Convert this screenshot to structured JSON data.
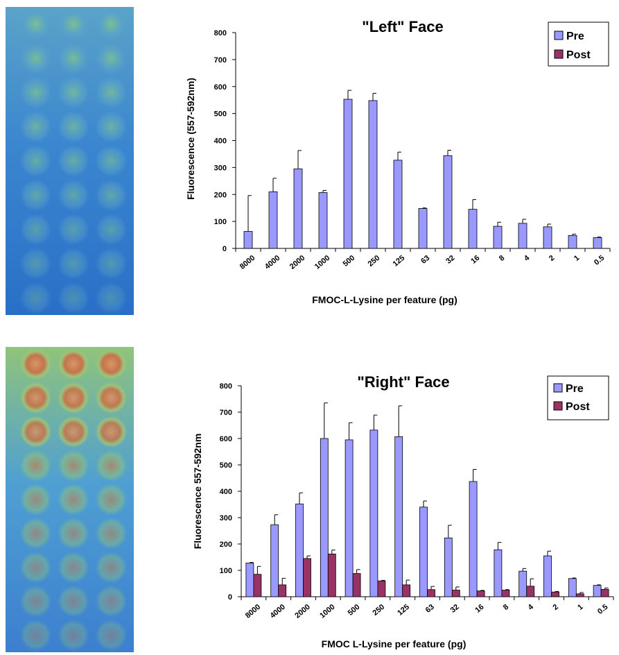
{
  "colors": {
    "pre": "#9999ff",
    "post": "#993366"
  },
  "images": [
    {
      "name": "left-face-fluorescence-image",
      "palette": [
        "#7fc38c",
        "#5aa3c9",
        "#3b86cf",
        "#2a6fc7"
      ]
    },
    {
      "name": "right-face-fluorescence-image",
      "palette": [
        "#c87a4c",
        "#8fc47a",
        "#4f9fd3",
        "#3c7fcf"
      ]
    }
  ],
  "chart_data": [
    {
      "type": "bar",
      "title": "\"Left\" Face",
      "xlabel": "FMOC-L-Lysine per feature (pg)",
      "ylabel": "Fluorescence (557-592nm)",
      "ylim": [
        0,
        800
      ],
      "yticks": [
        0,
        100,
        200,
        300,
        400,
        500,
        600,
        700,
        800
      ],
      "categories": [
        "8000",
        "4000",
        "2000",
        "1000",
        "500",
        "250",
        "125",
        "63",
        "32",
        "16",
        "8",
        "4",
        "2",
        "1",
        "0.5"
      ],
      "legend_position": "top-right",
      "legend": [
        "Pre",
        "Post"
      ],
      "series": [
        {
          "name": "Pre",
          "color": "#9999ff",
          "values": [
            63,
            210,
            295,
            207,
            553,
            548,
            327,
            148,
            344,
            145,
            82,
            93,
            80,
            48,
            40
          ],
          "errors": [
            133,
            50,
            68,
            8,
            33,
            27,
            30,
            2,
            20,
            36,
            15,
            15,
            10,
            5,
            2
          ]
        }
      ]
    },
    {
      "type": "bar",
      "title": "\"Right\" Face",
      "xlabel": "FMOC L-Lysine per feature (pg)",
      "ylabel": "Fluorescence 557-592nm",
      "ylim": [
        0,
        800
      ],
      "yticks": [
        0,
        100,
        200,
        300,
        400,
        500,
        600,
        700,
        800
      ],
      "categories": [
        "8000",
        "4000",
        "2000",
        "1000",
        "500",
        "250",
        "125",
        "63",
        "32",
        "16",
        "8",
        "4",
        "2",
        "1",
        "0.5"
      ],
      "legend_position": "top-right",
      "legend": [
        "Pre",
        "Post"
      ],
      "series": [
        {
          "name": "Pre",
          "color": "#9999ff",
          "values": [
            128,
            273,
            352,
            600,
            595,
            632,
            607,
            340,
            223,
            437,
            178,
            97,
            155,
            69,
            43
          ],
          "errors": [
            2,
            38,
            42,
            135,
            65,
            57,
            117,
            23,
            48,
            46,
            28,
            10,
            18,
            2,
            2
          ]
        },
        {
          "name": "Post",
          "color": "#993366",
          "values": [
            85,
            45,
            145,
            162,
            88,
            60,
            45,
            27,
            25,
            22,
            25,
            40,
            18,
            11,
            28
          ],
          "errors": [
            30,
            25,
            10,
            15,
            15,
            2,
            18,
            12,
            12,
            2,
            2,
            28,
            2,
            5,
            5
          ]
        }
      ]
    }
  ]
}
